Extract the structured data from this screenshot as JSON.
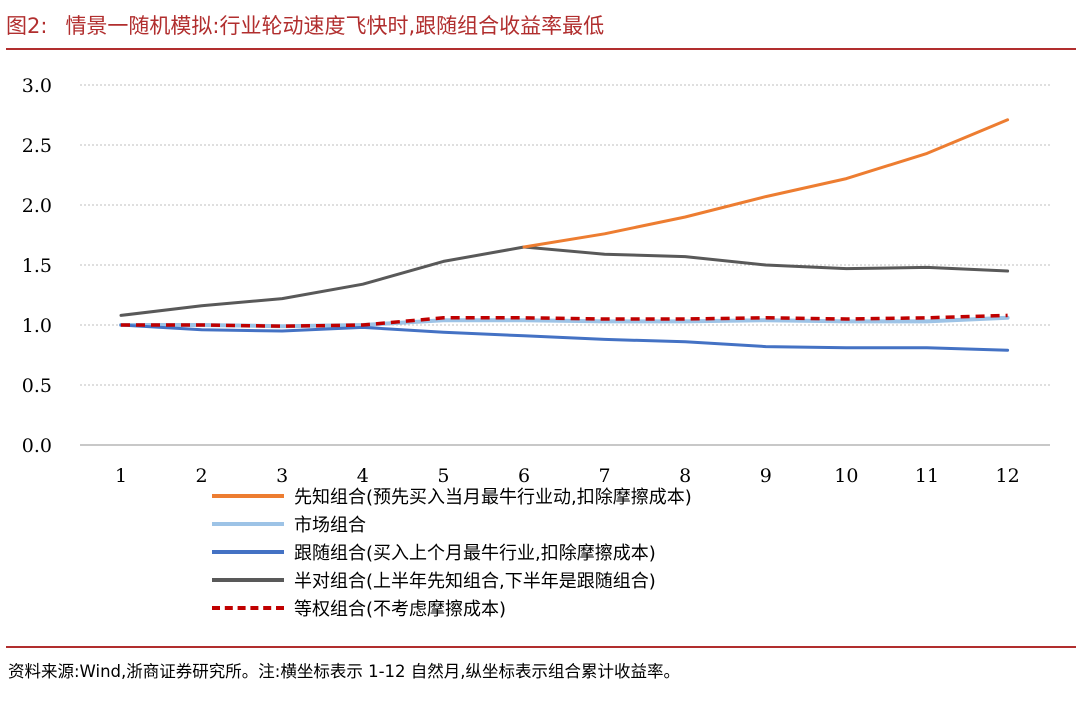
{
  "title": {
    "prefix": "图2:",
    "text": "情景一随机模拟:行业轮动速度飞快时,跟随组合收益率最低"
  },
  "footer": {
    "text": "资料来源:Wind,浙商证券研究所。注:横坐标表示 1-12 自然月,纵坐标表示组合累计收益率。"
  },
  "colors": {
    "accent": "#b12e2e"
  },
  "chart_data": {
    "type": "line",
    "categories": [
      "1",
      "2",
      "3",
      "4",
      "5",
      "6",
      "7",
      "8",
      "9",
      "10",
      "11",
      "12"
    ],
    "ylim": [
      0,
      3.0
    ],
    "yticks": [
      "0.0",
      "0.5",
      "1.0",
      "1.5",
      "2.0",
      "2.5",
      "3.0"
    ],
    "grid": true,
    "legend_position": "bottom",
    "series": [
      {
        "name": "先知组合(预先买入当月最牛行业动,扣除摩擦成本)",
        "color": "#ed7d31",
        "style": "solid",
        "x": [
          "6",
          "7",
          "8",
          "9",
          "10",
          "11",
          "12"
        ],
        "values": [
          1.65,
          1.76,
          1.9,
          2.07,
          2.22,
          2.43,
          2.71
        ]
      },
      {
        "name": "市场组合",
        "color": "#9dc3e6",
        "style": "solid",
        "values": [
          1.0,
          1.0,
          0.99,
          1.0,
          1.04,
          1.04,
          1.03,
          1.03,
          1.04,
          1.03,
          1.03,
          1.06
        ]
      },
      {
        "name": "跟随组合(买入上个月最牛行业,扣除摩擦成本)",
        "color": "#4472c4",
        "style": "solid",
        "values": [
          1.0,
          0.96,
          0.95,
          0.98,
          0.94,
          0.91,
          0.88,
          0.86,
          0.82,
          0.81,
          0.81,
          0.79
        ]
      },
      {
        "name": "半对组合(上半年先知组合,下半年是跟随组合)",
        "color": "#595959",
        "style": "solid",
        "values": [
          1.08,
          1.16,
          1.22,
          1.34,
          1.53,
          1.65,
          1.59,
          1.57,
          1.5,
          1.47,
          1.48,
          1.45
        ]
      },
      {
        "name": "等权组合(不考虑摩擦成本)",
        "color": "#c00000",
        "style": "dashed",
        "values": [
          1.0,
          1.0,
          0.99,
          1.0,
          1.06,
          1.06,
          1.05,
          1.05,
          1.06,
          1.05,
          1.06,
          1.08
        ]
      }
    ]
  }
}
